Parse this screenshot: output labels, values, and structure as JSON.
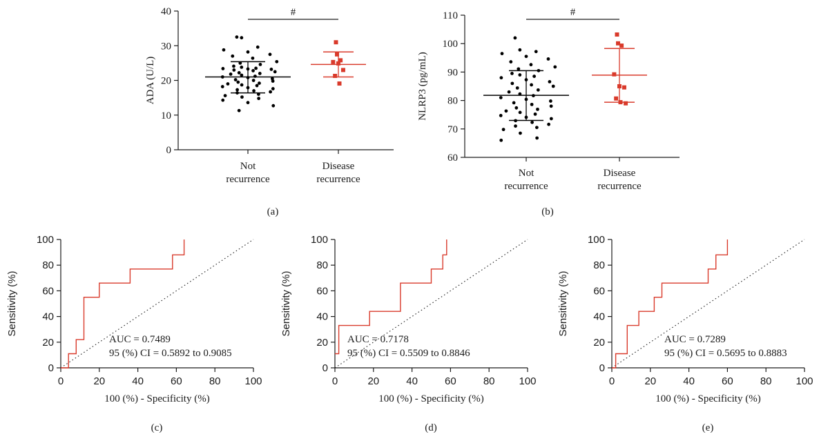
{
  "colors": {
    "not_recurrence": "#000000",
    "disease_recurrence": "#d93a2b",
    "roc_line": "#d93a2b",
    "axis": "#1a1a1a"
  },
  "chart_data": [
    {
      "panel": "(a)",
      "type": "scatter",
      "ylabel": "ADA (U/L)",
      "ylim": [
        0,
        40
      ],
      "yticks": [
        0,
        10,
        20,
        30,
        40
      ],
      "categories": [
        "Not\nrecurrence",
        "Disease\nrecurrence"
      ],
      "significance": "#",
      "series": [
        {
          "values": [
            32.5,
            32.3,
            29.6,
            28.8,
            28.2,
            27.5,
            27.0,
            26.4,
            25.4,
            25.0,
            24.6,
            24.1,
            23.8,
            23.5,
            23.4,
            23.3,
            23.2,
            23.0,
            22.8,
            22.5,
            22.2,
            22.0,
            21.8,
            21.5,
            21.2,
            21.0,
            20.8,
            20.5,
            20.2,
            20.0,
            19.8,
            19.5,
            19.2,
            19.0,
            18.7,
            18.5,
            18.2,
            17.9,
            17.6,
            17.3,
            17.0,
            16.7,
            16.4,
            16.0,
            15.6,
            15.2,
            14.8,
            14.3,
            13.6,
            12.7,
            11.3
          ],
          "mean": 21.0,
          "sd_low": 16.4,
          "sd_high": 25.4
        },
        {
          "values": [
            31.0,
            27.5,
            25.8,
            25.3,
            24.9,
            23.0,
            21.3,
            19.1
          ],
          "mean": 24.6,
          "sd_low": 21.0,
          "sd_high": 28.2
        }
      ]
    },
    {
      "panel": "(b)",
      "type": "scatter",
      "ylabel": "NLRP3 (pg/mL)",
      "ylim": [
        60,
        110
      ],
      "yticks": [
        60,
        70,
        80,
        90,
        100,
        110
      ],
      "categories": [
        "Not\nrecurrence",
        "Disease\nrecurrence"
      ],
      "significance": "#",
      "series": [
        {
          "values": [
            102.0,
            97.8,
            97.2,
            96.5,
            95.5,
            94.6,
            93.6,
            92.6,
            91.8,
            91.1,
            90.5,
            89.5,
            89.0,
            88.5,
            88.0,
            87.3,
            86.6,
            86.0,
            85.5,
            85.0,
            84.4,
            83.7,
            83.0,
            82.3,
            81.7,
            81.0,
            80.4,
            79.8,
            79.2,
            78.6,
            78.0,
            77.4,
            76.9,
            76.3,
            75.8,
            75.2,
            74.7,
            74.1,
            73.6,
            72.9,
            72.3,
            71.6,
            71.0,
            70.5,
            69.8,
            68.5,
            66.8,
            66.0
          ],
          "mean": 81.8,
          "sd_low": 73.0,
          "sd_high": 90.5
        },
        {
          "values": [
            103.2,
            100.1,
            99.3,
            89.2,
            85.0,
            84.6,
            80.7,
            79.4,
            79.0
          ],
          "mean": 88.9,
          "sd_low": 79.4,
          "sd_high": 98.3
        }
      ]
    },
    {
      "panel": "(c)",
      "type": "line",
      "xlabel": "100 (%) - Specificity (%)",
      "ylabel": "Sensitivity (%)",
      "xlim": [
        0,
        100
      ],
      "ylim": [
        0,
        100
      ],
      "ticks": [
        0,
        20,
        40,
        60,
        80,
        100
      ],
      "x": [
        0,
        4,
        4,
        8,
        8,
        12,
        12,
        20,
        20,
        36,
        36,
        58,
        58,
        64,
        64
      ],
      "y": [
        0,
        0,
        11,
        11,
        22,
        22,
        55,
        55,
        66,
        66,
        77,
        77,
        88,
        88,
        100
      ],
      "annotations": [
        "AUC = 0.7489",
        "95 (%) CI = 0.5892 to 0.9085"
      ]
    },
    {
      "panel": "(d)",
      "type": "line",
      "xlabel": "100 (%) - Specificity (%)",
      "ylabel": "Sensitivity (%)",
      "xlim": [
        0,
        100
      ],
      "ylim": [
        0,
        100
      ],
      "ticks": [
        0,
        20,
        40,
        60,
        80,
        100
      ],
      "x": [
        0,
        2,
        2,
        18,
        18,
        34,
        34,
        50,
        50,
        56,
        56,
        58,
        58
      ],
      "y": [
        11,
        11,
        33,
        33,
        44,
        44,
        66,
        66,
        77,
        77,
        88,
        88,
        100
      ],
      "annotations": [
        "AUC = 0.7178",
        "95 (%) CI = 0.5509 to 0.8846"
      ]
    },
    {
      "panel": "(e)",
      "type": "line",
      "xlabel": "100 (%) - Specificity (%)",
      "ylabel": "Sensitivity (%)",
      "xlim": [
        0,
        100
      ],
      "ylim": [
        0,
        100
      ],
      "ticks": [
        0,
        20,
        40,
        60,
        80,
        100
      ],
      "x": [
        0,
        2,
        2,
        8,
        8,
        14,
        14,
        22,
        22,
        26,
        26,
        50,
        50,
        54,
        54,
        60,
        60
      ],
      "y": [
        0,
        0,
        11,
        11,
        33,
        33,
        44,
        44,
        55,
        55,
        66,
        66,
        77,
        77,
        88,
        88,
        100
      ],
      "annotations": [
        "AUC = 0.7289",
        "95 (%) CI = 0.5695 to 0.8883"
      ]
    }
  ]
}
